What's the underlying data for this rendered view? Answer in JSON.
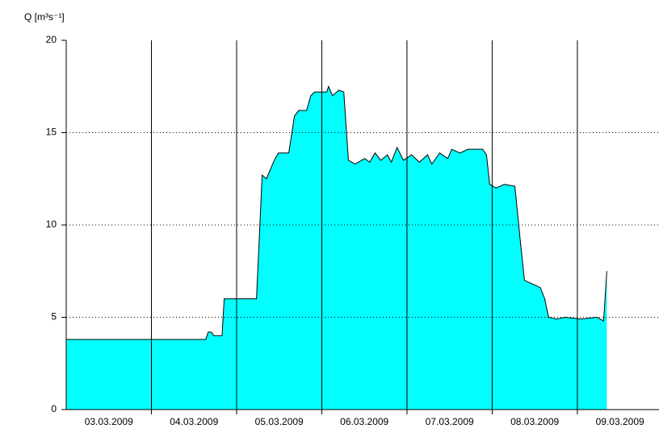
{
  "chart_data": {
    "type": "area",
    "y_label": "Q [m³s⁻¹]",
    "x": [
      0,
      39.3,
      40,
      40.9,
      41.6,
      43.9,
      44.5,
      53.6,
      55.2,
      56.4,
      58.6,
      59.8,
      62.7,
      64.3,
      65.5,
      67.7,
      68.9,
      70,
      73.4,
      73.9,
      75,
      76.8,
      78.2,
      79.5,
      81.4,
      84.1,
      85.5,
      87,
      88.6,
      90.5,
      91.6,
      93.2,
      95,
      97.3,
      99.5,
      101.8,
      103,
      105.2,
      107.5,
      108.6,
      110.9,
      113.2,
      117.3,
      118.4,
      119.3,
      121.1,
      123.4,
      126.4,
      128,
      129.1,
      131.4,
      133.6,
      134.8,
      135.9,
      138.2,
      140.5,
      145,
      149.5,
      151.4,
      152.3
    ],
    "series": [
      {
        "name": "Q",
        "color": "#00ffff",
        "values": [
          3.8,
          3.8,
          4.2,
          4.2,
          4.0,
          4.0,
          6.0,
          6.0,
          12.7,
          12.5,
          13.5,
          13.9,
          13.9,
          15.9,
          16.2,
          16.2,
          17.0,
          17.2,
          17.2,
          17.5,
          17.0,
          17.3,
          17.2,
          13.5,
          13.3,
          13.6,
          13.4,
          13.9,
          13.5,
          13.8,
          13.4,
          14.2,
          13.5,
          13.8,
          13.4,
          13.8,
          13.3,
          13.9,
          13.6,
          14.1,
          13.9,
          14.1,
          14.1,
          13.8,
          12.2,
          12.0,
          12.2,
          12.1,
          9.0,
          7.0,
          6.8,
          6.6,
          6.0,
          5.0,
          4.9,
          5.0,
          4.9,
          5.0,
          4.8,
          7.5
        ]
      }
    ],
    "xlim": [
      0,
      167
    ],
    "xticks": [
      {
        "value": 12,
        "label": "03.03.2009"
      },
      {
        "value": 36,
        "label": "04.03.2009"
      },
      {
        "value": 60,
        "label": "05.03.2009"
      },
      {
        "value": 84,
        "label": "06.03.2009"
      },
      {
        "value": 108,
        "label": "07.03.2009"
      },
      {
        "value": 132,
        "label": "08.03.2009"
      },
      {
        "value": 156,
        "label": "09.03.2009"
      }
    ],
    "day_lines": [
      24,
      48,
      72,
      96,
      120,
      144
    ],
    "ylim": [
      0,
      20
    ],
    "yticks": [
      0,
      5,
      10,
      15,
      20
    ],
    "grid": true
  }
}
